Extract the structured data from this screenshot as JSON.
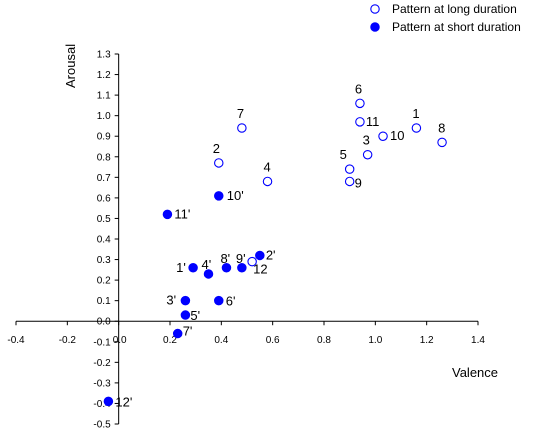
{
  "chart_data": {
    "type": "scatter",
    "xlabel": "Valence",
    "ylabel": "Arousal",
    "xlim": [
      -0.4,
      1.4
    ],
    "ylim": [
      -0.5,
      1.3
    ],
    "x_ticks": [
      "-0.4",
      "-0.2",
      "0.0",
      "0.2",
      "0.4",
      "0.6",
      "0.8",
      "1.0",
      "1.2",
      "1.4"
    ],
    "y_ticks": [
      "-0.5",
      "-0.4",
      "-0.3",
      "-0.2",
      "-0.1",
      "0.0",
      "0.1",
      "0.2",
      "0.3",
      "0.4",
      "0.5",
      "0.6",
      "0.7",
      "0.8",
      "0.9",
      "1.0",
      "1.1",
      "1.2",
      "1.3"
    ],
    "grid": false,
    "legend_position": "top-right",
    "marker_color": "#0000ff",
    "series": [
      {
        "name": "Pattern at long duration",
        "marker": "open-circle",
        "points": [
          {
            "label": "1",
            "x": 1.16,
            "y": 0.94
          },
          {
            "label": "2",
            "x": 0.39,
            "y": 0.77
          },
          {
            "label": "3",
            "x": 0.97,
            "y": 0.81
          },
          {
            "label": "4",
            "x": 0.58,
            "y": 0.68
          },
          {
            "label": "5",
            "x": 0.9,
            "y": 0.74
          },
          {
            "label": "6",
            "x": 0.94,
            "y": 1.06
          },
          {
            "label": "7",
            "x": 0.48,
            "y": 0.94
          },
          {
            "label": "8",
            "x": 1.26,
            "y": 0.87
          },
          {
            "label": "9",
            "x": 0.9,
            "y": 0.68
          },
          {
            "label": "10",
            "x": 1.03,
            "y": 0.9
          },
          {
            "label": "11",
            "x": 0.94,
            "y": 0.97
          },
          {
            "label": "12",
            "x": 0.52,
            "y": 0.29
          }
        ]
      },
      {
        "name": "Pattern at short duration",
        "marker": "filled-circle",
        "points": [
          {
            "label": "1'",
            "x": 0.29,
            "y": 0.26
          },
          {
            "label": "2'",
            "x": 0.55,
            "y": 0.32
          },
          {
            "label": "3'",
            "x": 0.26,
            "y": 0.1
          },
          {
            "label": "4'",
            "x": 0.35,
            "y": 0.23
          },
          {
            "label": "5'",
            "x": 0.26,
            "y": 0.03
          },
          {
            "label": "6'",
            "x": 0.39,
            "y": 0.1
          },
          {
            "label": "7'",
            "x": 0.23,
            "y": -0.06
          },
          {
            "label": "8'",
            "x": 0.42,
            "y": 0.26
          },
          {
            "label": "9'",
            "x": 0.48,
            "y": 0.26
          },
          {
            "label": "10'",
            "x": 0.39,
            "y": 0.61
          },
          {
            "label": "11'",
            "x": 0.19,
            "y": 0.52
          },
          {
            "label": "12'",
            "x": -0.04,
            "y": -0.39
          }
        ]
      }
    ]
  }
}
